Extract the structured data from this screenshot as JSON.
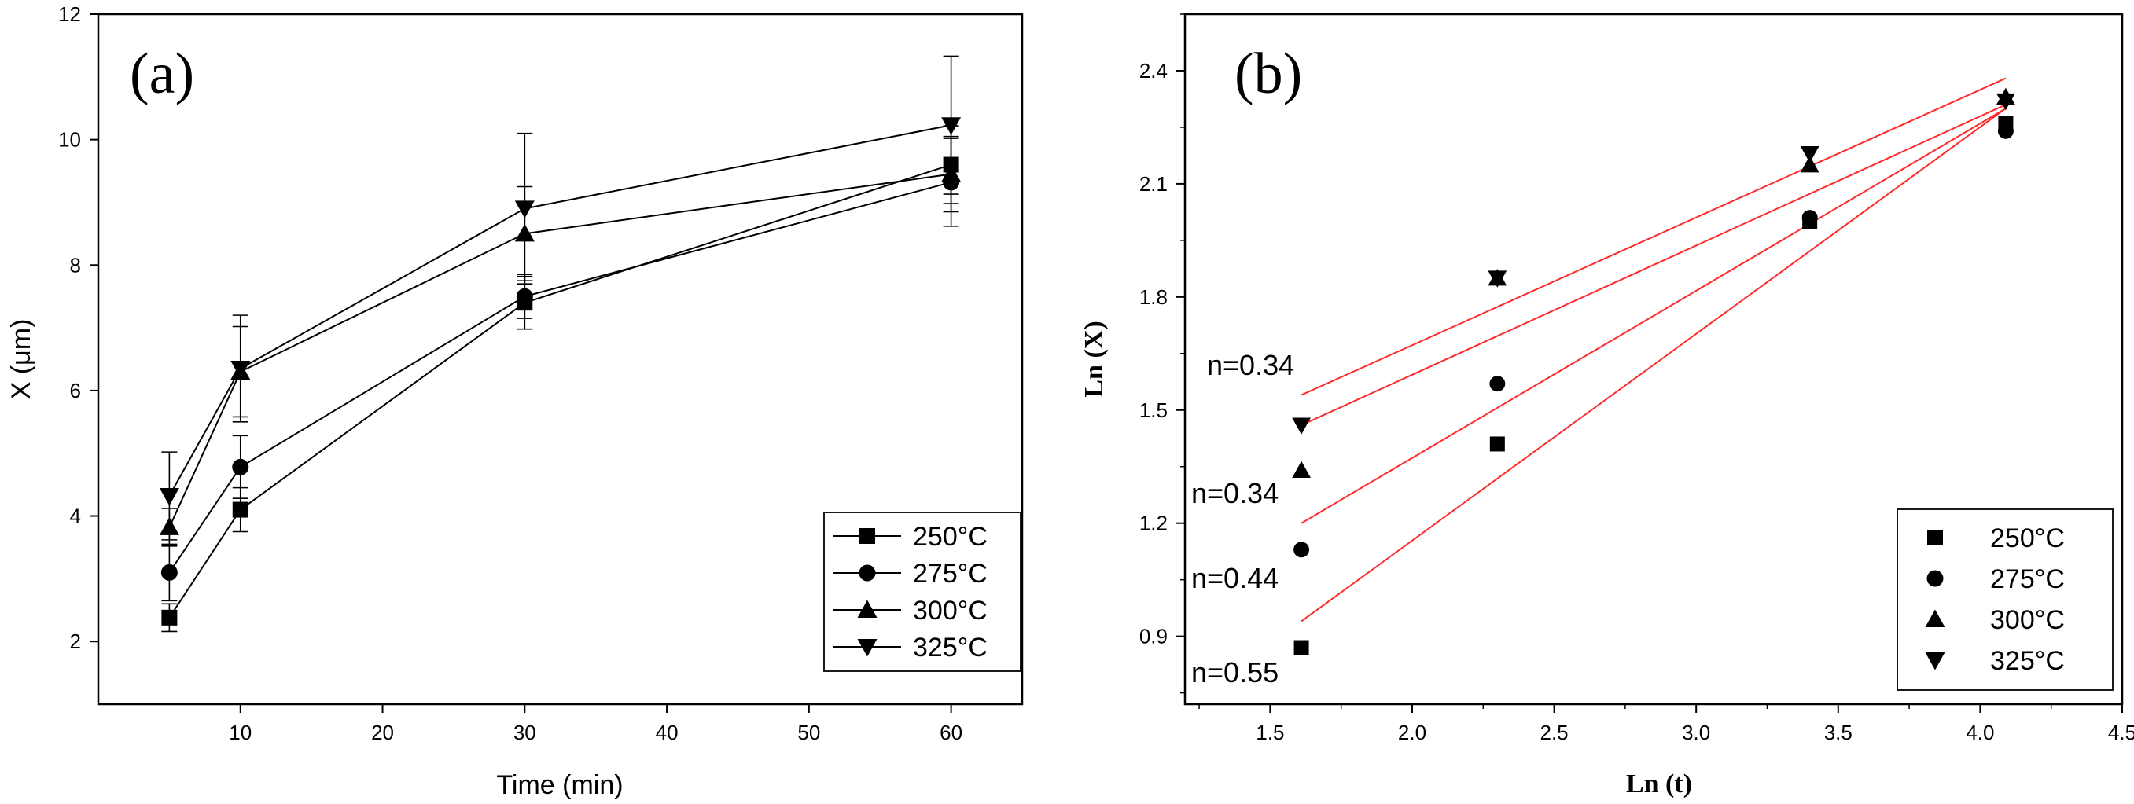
{
  "chart_data": [
    {
      "type": "line",
      "panel_label": "(a)",
      "xlabel": "Time (min)",
      "ylabel": "X (μm)",
      "xlim": [
        0,
        65
      ],
      "ylim": [
        1,
        12
      ],
      "xticks": [
        10,
        20,
        30,
        40,
        50,
        60
      ],
      "yticks": [
        2,
        4,
        6,
        8,
        10,
        12
      ],
      "legend_position": "bottom-right",
      "series": [
        {
          "name": "250°C",
          "marker": "square",
          "x": [
            5,
            10,
            30,
            60
          ],
          "y": [
            2.38,
            4.1,
            7.4,
            9.6
          ],
          "err": [
            0.22,
            0.35,
            0.42,
            0.62
          ]
        },
        {
          "name": "275°C",
          "marker": "circle",
          "x": [
            5,
            10,
            30,
            60
          ],
          "y": [
            3.1,
            4.78,
            7.5,
            9.32
          ],
          "err": [
            0.45,
            0.5,
            0.35,
            0.7
          ]
        },
        {
          "name": "300°C",
          "marker": "triangle-up",
          "x": [
            5,
            10,
            30,
            60
          ],
          "y": [
            3.82,
            6.3,
            8.5,
            9.45
          ],
          "err": [
            0.3,
            0.72,
            0.75,
            0.6
          ]
        },
        {
          "name": "325°C",
          "marker": "triangle-down",
          "x": [
            5,
            10,
            30,
            60
          ],
          "y": [
            4.32,
            6.35,
            8.9,
            10.23
          ],
          "err": [
            0.7,
            0.85,
            1.2,
            1.1
          ]
        }
      ]
    },
    {
      "type": "scatter",
      "panel_label": "(b)",
      "xlabel": "Ln (t)",
      "ylabel": "Ln (X)",
      "xlim": [
        1.2,
        4.5
      ],
      "ylim": [
        0.72,
        2.55
      ],
      "xticks": [
        1.5,
        2.0,
        2.5,
        3.0,
        3.5,
        4.0,
        4.5
      ],
      "yticks": [
        0.9,
        1.2,
        1.5,
        1.8,
        2.1,
        2.4
      ],
      "legend_position": "bottom-right",
      "series": [
        {
          "name": "250°C",
          "marker": "square",
          "x": [
            1.61,
            2.3,
            3.4,
            4.09
          ],
          "y": [
            0.87,
            1.41,
            2.0,
            2.26
          ],
          "fit": [
            0.94,
            2.3
          ]
        },
        {
          "name": "275°C",
          "marker": "circle",
          "x": [
            1.61,
            2.3,
            3.4,
            4.09
          ],
          "y": [
            1.13,
            1.57,
            2.01,
            2.24
          ],
          "fit": [
            1.2,
            2.3
          ]
        },
        {
          "name": "300°C",
          "marker": "triangle-up",
          "x": [
            1.61,
            2.3,
            3.4,
            4.09
          ],
          "y": [
            1.34,
            1.85,
            2.15,
            2.33
          ],
          "fit": [
            1.46,
            2.31
          ]
        },
        {
          "name": "325°C",
          "marker": "triangle-down",
          "x": [
            1.61,
            2.3,
            3.4,
            4.09
          ],
          "y": [
            1.46,
            1.85,
            2.18,
            2.32
          ],
          "fit": [
            1.54,
            2.38
          ]
        }
      ],
      "fit_line_color": "#ff2a2a",
      "annotations": [
        {
          "text": "n=0.34",
          "near_series": "325°C"
        },
        {
          "text": "n=0.34",
          "near_series": "300°C"
        },
        {
          "text": "n=0.44",
          "near_series": "275°C"
        },
        {
          "text": "n=0.55",
          "near_series": "250°C"
        }
      ]
    }
  ]
}
